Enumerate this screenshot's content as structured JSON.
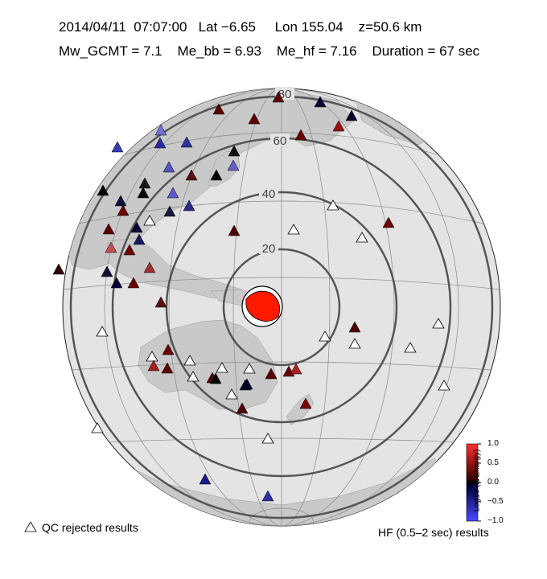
{
  "header": {
    "line1": "2014/04/11  07:07:00   Lat −6.65     Lon 155.04    z=50.6 km",
    "line2": "Mw_GCMT = 7.1    Me_bb = 6.93    Me_hf = 7.16    Duration = 67 sec"
  },
  "map": {
    "distance_ring_labels": [
      "20",
      "40",
      "60",
      "80"
    ],
    "colors": {
      "ocean": "#e4e4e4",
      "land": "#c9c9c9",
      "ring": "#555555",
      "beachball_fill": "#ff1a00"
    },
    "stations": [
      {
        "c": "#5a0000"
      },
      {
        "c": "#000033"
      },
      {
        "c": "#0a0a2a"
      },
      {
        "c": "#5a0000"
      },
      {
        "c": "#600000"
      },
      {
        "c": "#990f0f"
      },
      {
        "c": "#6a0000"
      },
      {
        "c": "#7070d8"
      },
      {
        "c": "#3a3ab0"
      },
      {
        "c": "#2a2aa0"
      },
      {
        "c": "#101010"
      },
      {
        "c": "#3030a0"
      },
      {
        "c": "#5555c0"
      },
      {
        "c": "#000000"
      },
      {
        "c": "#6060d0"
      },
      {
        "c": "#5a1010"
      },
      {
        "c": "#1a1a1a"
      },
      {
        "c": "#101040"
      },
      {
        "c": "#000000"
      },
      {
        "c": "#000000"
      },
      {
        "c": "#5a5ac8"
      },
      {
        "c": "#2a2a8a"
      },
      {
        "c": "#6a0000"
      },
      {
        "c": "#1a1a40"
      },
      {
        "c": "#000033"
      },
      {
        "c": "#5a0000"
      },
      {
        "c": "#1a1a60"
      },
      {
        "c": "#c85050"
      },
      {
        "c": "#700000"
      },
      {
        "c": "#a03030"
      },
      {
        "c": "#300000"
      },
      {
        "c": "#000033"
      },
      {
        "c": "#101030"
      },
      {
        "c": "#6a0000"
      },
      {
        "c": "#5a1010"
      },
      {
        "c": "#6a0000"
      },
      {
        "c": "#5a0000"
      },
      {
        "c": "#a02020"
      },
      {
        "c": "#5a0000"
      },
      {
        "c": "#4a0000"
      },
      {
        "c": "#000033"
      },
      {
        "c": "#5a0000"
      },
      {
        "c": "#4a0000"
      },
      {
        "c": "#000000"
      },
      {
        "c": "#6a0000"
      },
      {
        "c": "#7a0000"
      },
      {
        "c": "#b02020"
      },
      {
        "c": "#000022"
      },
      {
        "c": "#6a0000"
      },
      {
        "c": "#4a0000"
      },
      {
        "c": "#1a1a8a"
      },
      {
        "c": "#3030a0"
      }
    ]
  },
  "colorbar": {
    "title": "Log10 (Δ Energy)",
    "ticks": [
      "1.0",
      "0.5",
      "0.0",
      "−0.5",
      "−1.0"
    ]
  },
  "legend": {
    "qc_label": "QC rejected results",
    "hf_label": "HF (0.5–2 sec) results"
  }
}
